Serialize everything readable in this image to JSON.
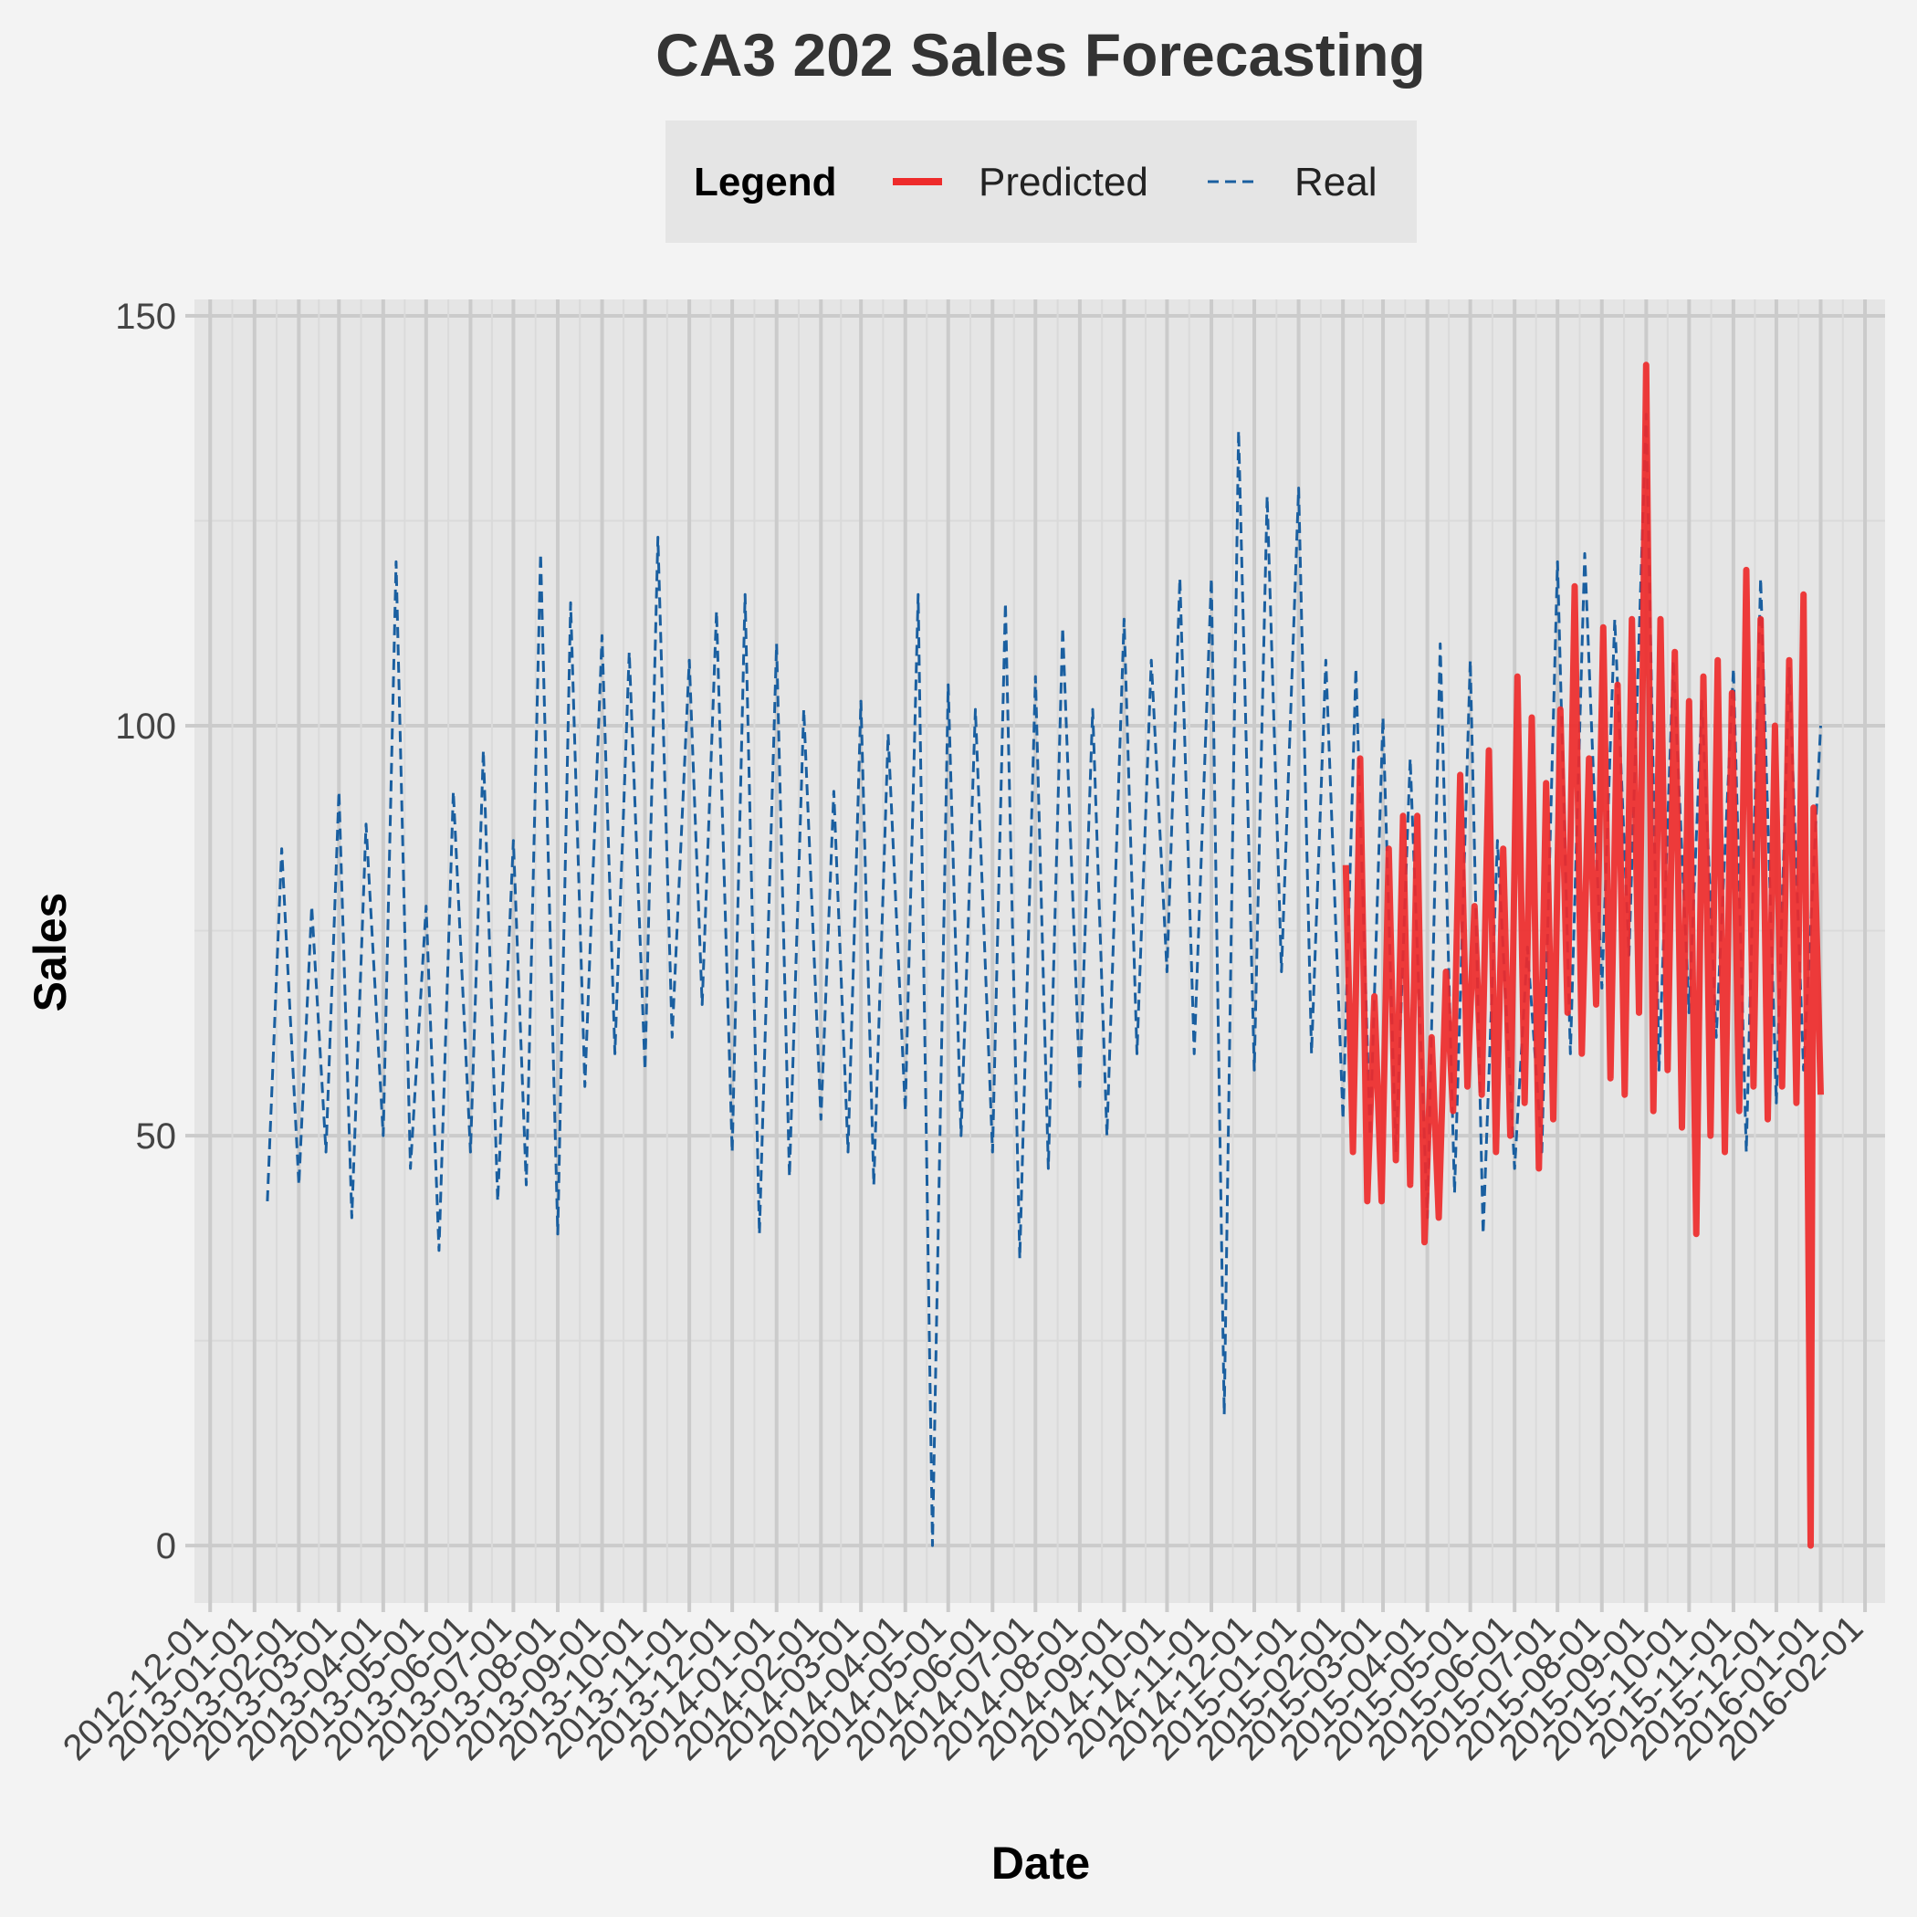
{
  "chart_data": {
    "type": "line",
    "title": "CA3 202 Sales Forecasting",
    "xlabel": "Date",
    "ylabel": "Sales",
    "ylim": [
      -7,
      152
    ],
    "yticks": [
      0,
      50,
      100,
      150
    ],
    "xlim": [
      "2012-11-20",
      "2016-02-15"
    ],
    "xticks": [
      "2012-12-01",
      "2013-01-01",
      "2013-02-01",
      "2013-03-01",
      "2013-04-01",
      "2013-05-01",
      "2013-06-01",
      "2013-07-01",
      "2013-08-01",
      "2013-09-01",
      "2013-10-01",
      "2013-11-01",
      "2013-12-01",
      "2014-01-01",
      "2014-02-01",
      "2014-03-01",
      "2014-04-01",
      "2014-05-01",
      "2014-06-01",
      "2014-07-01",
      "2014-08-01",
      "2014-09-01",
      "2014-10-01",
      "2014-11-01",
      "2014-12-01",
      "2015-01-01",
      "2015-02-01",
      "2015-03-01",
      "2015-04-01",
      "2015-05-01",
      "2015-06-01",
      "2015-07-01",
      "2015-08-01",
      "2015-09-01",
      "2015-10-01",
      "2015-11-01",
      "2015-12-01",
      "2016-01-01",
      "2016-02-01"
    ],
    "xtick_labels": [
      "2012-12-01",
      "2013-01-01",
      "2013-02-01",
      "2013-03-01",
      "2013-04-01",
      "2013-05-01",
      "2013-06-01",
      "2013-07-01",
      "2013-08-01",
      "2013-09-01",
      "2013-10-01",
      "2013-11-01",
      "2013-12-01",
      "2014-01-01",
      "2014-02-01",
      "2014-03-01",
      "2014-04-01",
      "2014-05-01",
      "2014-06-01",
      "2014-07-01",
      "2014-08-01",
      "2014-09-01",
      "2014-10-01",
      "2014-11-01",
      "2014-12-01",
      "2015-01-01",
      "2015-02-01",
      "2015-03-01",
      "2015-04-01",
      "2015-05-01",
      "2015-06-01",
      "2015-07-01",
      "2015-08-01",
      "2015-09-01",
      "2015-10-01",
      "2015-11-01",
      "2015-12-01",
      "2016-01-01",
      "2016-02-01"
    ],
    "grid": true,
    "legend": {
      "title": "Legend",
      "position": "top",
      "entries": [
        {
          "label": "Predicted",
          "color": "#ee2b2b",
          "style": "solid"
        },
        {
          "label": "Real",
          "color": "#1a5fa0",
          "style": "dashed"
        }
      ]
    },
    "series": [
      {
        "name": "Real",
        "color": "#1a5fa0",
        "style": "dashed",
        "x": [
          "2013-01-10",
          "2013-01-20",
          "2013-02-01",
          "2013-02-10",
          "2013-02-20",
          "2013-03-01",
          "2013-03-10",
          "2013-03-20",
          "2013-04-01",
          "2013-04-10",
          "2013-04-20",
          "2013-05-01",
          "2013-05-10",
          "2013-05-20",
          "2013-06-01",
          "2013-06-10",
          "2013-06-20",
          "2013-07-01",
          "2013-07-10",
          "2013-07-20",
          "2013-08-01",
          "2013-08-10",
          "2013-08-20",
          "2013-09-01",
          "2013-09-10",
          "2013-09-20",
          "2013-10-01",
          "2013-10-10",
          "2013-10-20",
          "2013-11-01",
          "2013-11-10",
          "2013-11-20",
          "2013-12-01",
          "2013-12-10",
          "2013-12-20",
          "2014-01-01",
          "2014-01-10",
          "2014-01-20",
          "2014-02-01",
          "2014-02-10",
          "2014-02-20",
          "2014-03-01",
          "2014-03-10",
          "2014-03-20",
          "2014-04-01",
          "2014-04-10",
          "2014-04-20",
          "2014-05-01",
          "2014-05-10",
          "2014-05-20",
          "2014-06-01",
          "2014-06-10",
          "2014-06-20",
          "2014-07-01",
          "2014-07-10",
          "2014-07-20",
          "2014-08-01",
          "2014-08-10",
          "2014-08-20",
          "2014-09-01",
          "2014-09-10",
          "2014-09-20",
          "2014-10-01",
          "2014-10-10",
          "2014-10-20",
          "2014-11-01",
          "2014-11-10",
          "2014-11-20",
          "2014-12-01",
          "2014-12-10",
          "2014-12-20",
          "2015-01-01",
          "2015-01-10",
          "2015-01-20",
          "2015-02-01",
          "2015-02-10",
          "2015-02-20",
          "2015-03-01",
          "2015-03-10",
          "2015-03-20",
          "2015-04-01",
          "2015-04-10",
          "2015-04-20",
          "2015-05-01",
          "2015-05-10",
          "2015-05-20",
          "2015-06-01",
          "2015-06-10",
          "2015-06-20",
          "2015-07-01",
          "2015-07-10",
          "2015-07-20",
          "2015-08-01",
          "2015-08-10",
          "2015-08-20",
          "2015-09-01",
          "2015-09-10",
          "2015-09-20",
          "2015-10-01",
          "2015-10-10",
          "2015-10-20",
          "2015-11-01",
          "2015-11-10",
          "2015-11-20",
          "2015-12-01",
          "2015-12-10",
          "2015-12-20",
          "2016-01-01"
        ],
        "y": [
          42,
          85,
          44,
          78,
          48,
          92,
          40,
          88,
          50,
          120,
          46,
          78,
          36,
          92,
          48,
          97,
          42,
          86,
          44,
          121,
          38,
          115,
          56,
          111,
          60,
          109,
          58,
          123,
          62,
          108,
          66,
          114,
          48,
          116,
          38,
          110,
          45,
          102,
          52,
          92,
          48,
          103,
          44,
          99,
          53,
          116,
          0,
          105,
          50,
          102,
          48,
          115,
          35,
          106,
          46,
          112,
          56,
          102,
          50,
          113,
          60,
          108,
          70,
          118,
          60,
          118,
          16,
          136,
          58,
          128,
          70,
          129,
          60,
          108,
          52,
          107,
          50,
          101,
          48,
          96,
          40,
          110,
          43,
          108,
          38,
          86,
          46,
          73,
          48,
          120,
          60,
          121,
          68,
          113,
          72,
          138,
          58,
          108,
          65,
          103,
          62,
          107,
          48,
          118,
          54,
          107,
          58,
          100
        ]
      },
      {
        "name": "Predicted",
        "color": "#ee2b2b",
        "style": "solid",
        "x": [
          "2015-02-03",
          "2015-02-08",
          "2015-02-13",
          "2015-02-18",
          "2015-02-23",
          "2015-02-28",
          "2015-03-05",
          "2015-03-10",
          "2015-03-15",
          "2015-03-20",
          "2015-03-25",
          "2015-03-30",
          "2015-04-04",
          "2015-04-09",
          "2015-04-14",
          "2015-04-19",
          "2015-04-24",
          "2015-04-29",
          "2015-05-04",
          "2015-05-09",
          "2015-05-14",
          "2015-05-19",
          "2015-05-24",
          "2015-05-29",
          "2015-06-03",
          "2015-06-08",
          "2015-06-13",
          "2015-06-18",
          "2015-06-23",
          "2015-06-28",
          "2015-07-03",
          "2015-07-08",
          "2015-07-13",
          "2015-07-18",
          "2015-07-23",
          "2015-07-28",
          "2015-08-02",
          "2015-08-07",
          "2015-08-12",
          "2015-08-17",
          "2015-08-22",
          "2015-08-27",
          "2015-09-01",
          "2015-09-06",
          "2015-09-11",
          "2015-09-16",
          "2015-09-21",
          "2015-09-26",
          "2015-10-01",
          "2015-10-06",
          "2015-10-11",
          "2015-10-16",
          "2015-10-21",
          "2015-10-26",
          "2015-10-31",
          "2015-11-05",
          "2015-11-10",
          "2015-11-15",
          "2015-11-20",
          "2015-11-25",
          "2015-11-30",
          "2015-12-05",
          "2015-12-10",
          "2015-12-15",
          "2015-12-20",
          "2015-12-25",
          "2015-12-27",
          "2016-01-01"
        ],
        "y": [
          83,
          48,
          96,
          42,
          67,
          42,
          85,
          47,
          89,
          44,
          89,
          37,
          62,
          40,
          70,
          53,
          94,
          56,
          78,
          55,
          97,
          48,
          85,
          50,
          106,
          54,
          101,
          46,
          93,
          52,
          102,
          65,
          117,
          60,
          96,
          66,
          112,
          57,
          105,
          55,
          113,
          65,
          144,
          53,
          113,
          58,
          109,
          51,
          103,
          38,
          106,
          50,
          108,
          48,
          104,
          53,
          119,
          56,
          113,
          52,
          100,
          56,
          108,
          54,
          116,
          0,
          90,
          55
        ]
      }
    ]
  }
}
